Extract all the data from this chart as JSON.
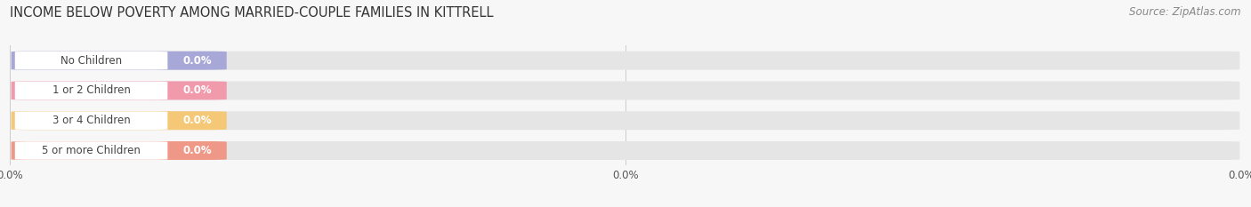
{
  "title": "INCOME BELOW POVERTY AMONG MARRIED-COUPLE FAMILIES IN KITTRELL",
  "source": "Source: ZipAtlas.com",
  "categories": [
    "No Children",
    "1 or 2 Children",
    "3 or 4 Children",
    "5 or more Children"
  ],
  "values": [
    0.0,
    0.0,
    0.0,
    0.0
  ],
  "bar_colors": [
    "#a8a8d8",
    "#f09aac",
    "#f5c878",
    "#f09888"
  ],
  "background_color": "#f7f7f7",
  "bar_bg_color": "#e5e5e5",
  "title_fontsize": 10.5,
  "source_fontsize": 8.5,
  "bar_height": 0.62,
  "value_fontsize": 8.5,
  "label_fontsize": 8.5
}
